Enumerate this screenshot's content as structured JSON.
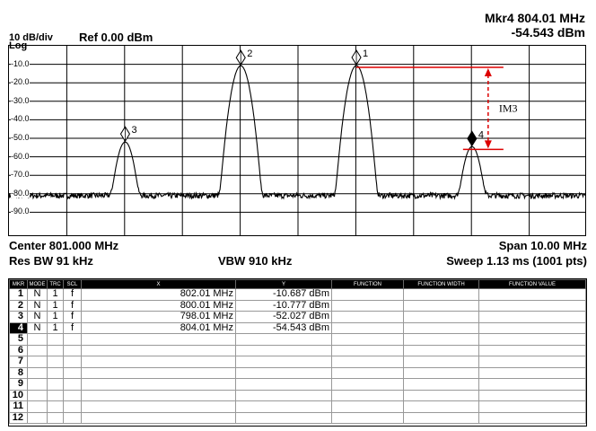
{
  "header": {
    "marker_readout_line1": "Mkr4 804.01 MHz",
    "marker_readout_line2": "-54.543 dBm",
    "scale": "10 dB/div",
    "ref_level": "Ref 0.00 dBm",
    "log_label": "Log"
  },
  "footer": {
    "center": "Center 801.000 MHz",
    "span": "Span 10.00 MHz",
    "res_bw": "Res BW 91 kHz",
    "vbw": "VBW 910 kHz",
    "sweep": "Sweep  1.13 ms (1001 pts)"
  },
  "plot": {
    "y_ticks": [
      "-10.0",
      "-20.0",
      "-30.0",
      "-40.0",
      "-50.0",
      "-60.0",
      "-70.0",
      "-80.0",
      "-90.0"
    ],
    "im3_label": "IM3",
    "markers": [
      {
        "id": "1",
        "freq_mhz": 802.01,
        "amp_dbm": -10.687
      },
      {
        "id": "2",
        "freq_mhz": 800.01,
        "amp_dbm": -10.777
      },
      {
        "id": "3",
        "freq_mhz": 798.01,
        "amp_dbm": -52.027
      },
      {
        "id": "4",
        "freq_mhz": 804.01,
        "amp_dbm": -54.543
      }
    ],
    "center_mhz": 801.0,
    "span_mhz": 10.0,
    "ref_dbm": 0,
    "db_per_div": 10,
    "noise_floor_dbm": -81,
    "colors": {
      "trace": "#000000",
      "annotation": "#dd0000",
      "grid": "#000000"
    }
  },
  "table": {
    "columns": [
      "MKR",
      "MODE",
      "TRC",
      "SCL",
      "X",
      "Y",
      "FUNCTION",
      "FUNCTION WIDTH",
      "FUNCTION VALUE"
    ],
    "rows": [
      {
        "mkr": "1",
        "mode": "N",
        "trc": "1",
        "scl": "f",
        "x": "802.01 MHz",
        "y": "-10.687 dBm"
      },
      {
        "mkr": "2",
        "mode": "N",
        "trc": "1",
        "scl": "f",
        "x": "800.01 MHz",
        "y": "-10.777 dBm"
      },
      {
        "mkr": "3",
        "mode": "N",
        "trc": "1",
        "scl": "f",
        "x": "798.01 MHz",
        "y": "-52.027 dBm"
      },
      {
        "mkr": "4",
        "mode": "N",
        "trc": "1",
        "scl": "f",
        "x": "804.01 MHz",
        "y": "-54.543 dBm"
      },
      {
        "mkr": "5"
      },
      {
        "mkr": "6"
      },
      {
        "mkr": "7"
      },
      {
        "mkr": "8"
      },
      {
        "mkr": "9"
      },
      {
        "mkr": "10"
      },
      {
        "mkr": "11"
      },
      {
        "mkr": "12"
      }
    ],
    "selected_row": "4"
  }
}
